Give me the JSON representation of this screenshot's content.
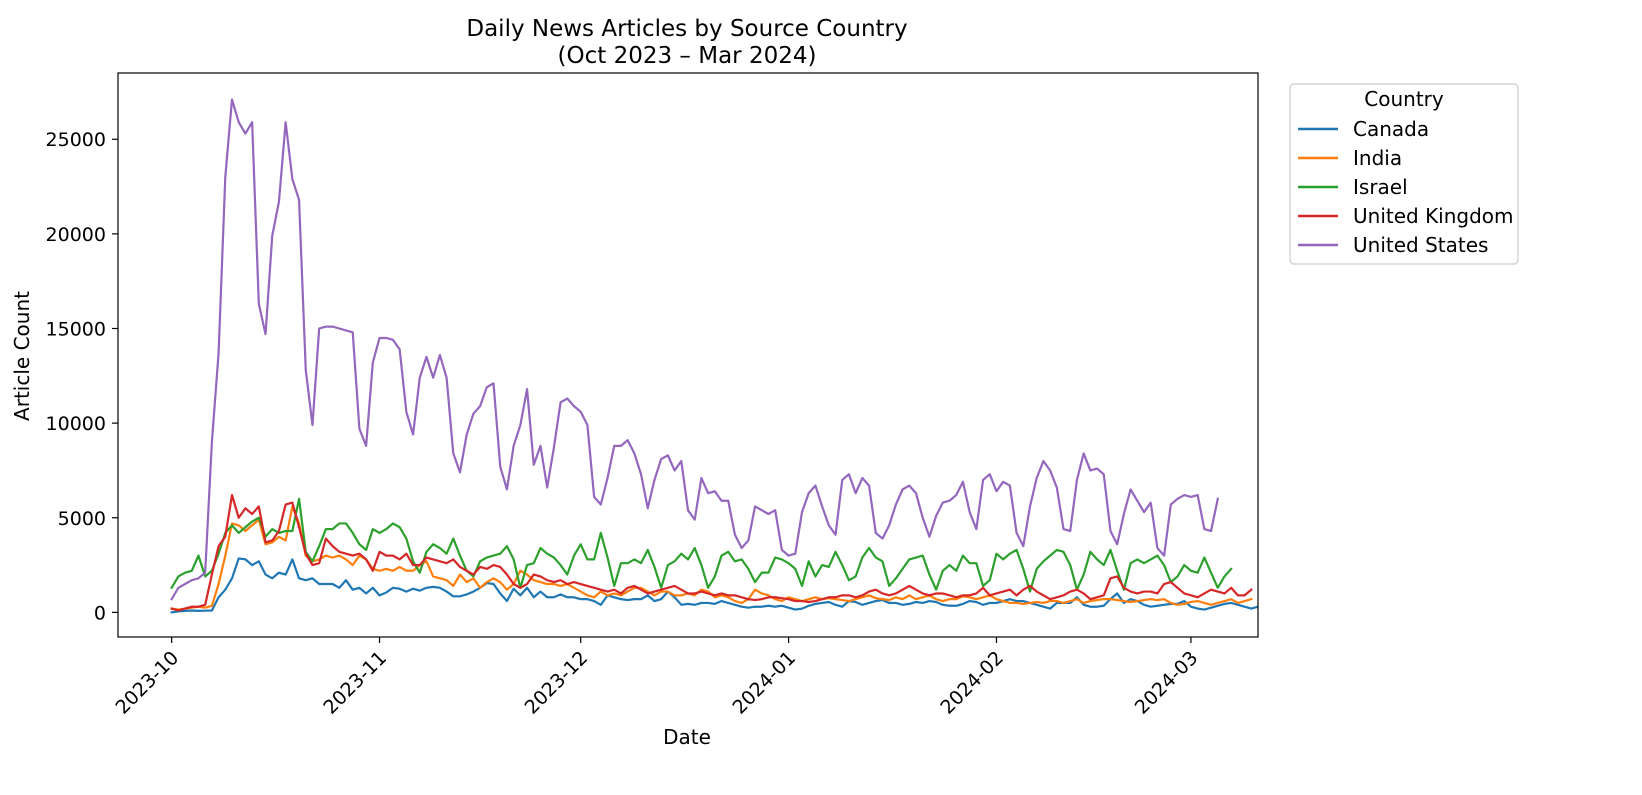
{
  "chart_data": {
    "type": "line",
    "title": "Daily News Articles by Source Country",
    "subtitle": "(Oct 2023 – Mar 2024)",
    "xlabel": "Date",
    "ylabel": "Article Count",
    "x_start": "2023-10-01",
    "x_end": "2024-03-04",
    "xlim": [
      "2023-09-23",
      "2024-03-11"
    ],
    "ylim": [
      -1300,
      28500
    ],
    "x_ticks": [
      "2023-10",
      "2023-11",
      "2023-12",
      "2024-01",
      "2024-02",
      "2024-03"
    ],
    "y_ticks": [
      0,
      5000,
      10000,
      15000,
      20000,
      25000
    ],
    "grid": false,
    "legend": {
      "title": "Country",
      "placement": "outside-top-right"
    },
    "series": [
      {
        "name": "Canada",
        "color": "#1f77b4",
        "values": [
          0,
          50,
          80,
          100,
          80,
          90,
          100,
          800,
          1200,
          1800,
          2850,
          2800,
          2500,
          2700,
          2000,
          1800,
          2100,
          2000,
          2800,
          1800,
          1700,
          1800,
          1500,
          1500,
          1500,
          1300,
          1700,
          1200,
          1300,
          1000,
          1300,
          900,
          1050,
          1300,
          1250,
          1100,
          1250,
          1150,
          1300,
          1350,
          1300,
          1100,
          850,
          850,
          950,
          1100,
          1300,
          1550,
          1500,
          1000,
          600,
          1250,
          900,
          1300,
          800,
          1100,
          800,
          800,
          950,
          800,
          800,
          700,
          700,
          600,
          400,
          900,
          800,
          700,
          650,
          700,
          700,
          900,
          600,
          700,
          1100,
          800,
          400,
          450,
          400,
          500,
          500,
          450,
          600,
          500,
          400,
          300,
          250,
          300,
          300,
          350,
          300,
          350,
          250,
          150,
          200,
          350,
          450,
          500,
          550,
          400,
          300,
          600,
          550,
          400,
          500,
          600,
          650,
          500,
          500,
          400,
          450,
          550,
          500,
          600,
          550,
          400,
          350,
          350,
          450,
          600,
          550,
          400,
          500,
          500,
          600,
          700,
          600,
          600,
          500,
          400,
          300,
          200,
          500,
          500,
          500,
          800,
          400,
          300,
          300,
          350,
          700,
          1000,
          500,
          700,
          600,
          400,
          300,
          350,
          400,
          450,
          450,
          600,
          300,
          200,
          150,
          250,
          350,
          450,
          500,
          400,
          300,
          200,
          300,
          500
        ]
      },
      {
        "name": "India",
        "color": "#ff7f0e",
        "values": [
          200,
          150,
          200,
          250,
          300,
          250,
          350,
          1500,
          3000,
          4700,
          4600,
          4300,
          4600,
          4900,
          3600,
          3700,
          4000,
          3800,
          5600,
          4700,
          3000,
          2700,
          2800,
          3000,
          2900,
          3000,
          2800,
          2500,
          3000,
          2800,
          2300,
          2200,
          2300,
          2200,
          2400,
          2200,
          2200,
          2500,
          2700,
          1900,
          1800,
          1700,
          1400,
          2000,
          1600,
          1800,
          1300,
          1600,
          1800,
          1600,
          1200,
          1500,
          2200,
          2000,
          1700,
          1600,
          1500,
          1500,
          1400,
          1500,
          1300,
          1100,
          900,
          800,
          1100,
          900,
          1000,
          900,
          1100,
          1300,
          1300,
          1100,
          900,
          1100,
          1100,
          900,
          900,
          1000,
          900,
          1200,
          1100,
          800,
          900,
          800,
          600,
          500,
          700,
          1200,
          1000,
          900,
          700,
          600,
          800,
          700,
          600,
          700,
          800,
          700,
          750,
          700,
          650,
          600,
          700,
          800,
          900,
          750,
          700,
          650,
          800,
          700,
          900,
          700,
          800,
          900,
          700,
          600,
          700,
          700,
          850,
          800,
          700,
          800,
          900,
          700,
          600,
          500,
          500,
          450,
          500,
          550,
          500,
          600,
          600,
          500,
          600,
          700,
          500,
          600,
          650,
          700,
          700,
          650,
          600,
          550,
          600,
          650,
          700,
          650,
          700,
          500,
          400,
          450,
          550,
          600,
          500,
          400,
          500,
          600,
          700,
          500,
          600,
          700
        ]
      },
      {
        "name": "Israel",
        "color": "#2ca02c",
        "values": [
          1300,
          1900,
          2100,
          2200,
          3000,
          1900,
          2200,
          3100,
          4200,
          4600,
          4200,
          4500,
          4800,
          5000,
          4000,
          4400,
          4200,
          4300,
          4300,
          6000,
          3200,
          2700,
          3500,
          4400,
          4400,
          4700,
          4700,
          4200,
          3600,
          3300,
          4400,
          4200,
          4400,
          4700,
          4500,
          3900,
          2700,
          2100,
          3200,
          3600,
          3400,
          3100,
          3900,
          3000,
          2200,
          1900,
          2700,
          2900,
          3000,
          3100,
          3500,
          2800,
          1300,
          2500,
          2600,
          3400,
          3100,
          2900,
          2500,
          2000,
          3000,
          3600,
          2800,
          2800,
          4200,
          2900,
          1400,
          2600,
          2600,
          2800,
          2600,
          3300,
          2400,
          1300,
          2500,
          2700,
          3100,
          2800,
          3400,
          2500,
          1300,
          1900,
          3000,
          3200,
          2700,
          2800,
          2300,
          1600,
          2100,
          2100,
          2900,
          2800,
          2600,
          2300,
          1400,
          2700,
          1900,
          2500,
          2400,
          3200,
          2500,
          1700,
          1900,
          2900,
          3400,
          2900,
          2700,
          1400,
          1800,
          2300,
          2800,
          2900,
          3000,
          2000,
          1200,
          2200,
          2500,
          2200,
          3000,
          2600,
          2600,
          1400,
          1700,
          3100,
          2800,
          3100,
          3300,
          2300,
          1100,
          2300,
          2700,
          3000,
          3300,
          3200,
          2500,
          1200,
          2000,
          3200,
          2800,
          2500,
          3300,
          2200,
          1200,
          2600,
          2800,
          2600,
          2800,
          3000,
          2500,
          1600,
          1900,
          2500,
          2200,
          2100,
          2900,
          2100,
          1300,
          1900,
          2300
        ]
      },
      {
        "name": "United Kingdom",
        "color": "#d62728",
        "values": [
          200,
          100,
          200,
          300,
          300,
          400,
          2000,
          3500,
          4000,
          6200,
          5000,
          5500,
          5200,
          5600,
          3700,
          3800,
          4300,
          5700,
          5800,
          4500,
          3100,
          2500,
          2600,
          3900,
          3500,
          3200,
          3100,
          3000,
          3100,
          2800,
          2200,
          3200,
          3000,
          3000,
          2800,
          3100,
          2500,
          2500,
          2900,
          2800,
          2700,
          2600,
          2800,
          2400,
          2200,
          2000,
          2400,
          2300,
          2500,
          2400,
          2000,
          1500,
          1300,
          1500,
          2000,
          1900,
          1700,
          1600,
          1700,
          1500,
          1600,
          1500,
          1400,
          1300,
          1200,
          1100,
          1200,
          1000,
          1300,
          1400,
          1200,
          1000,
          1100,
          1200,
          1300,
          1400,
          1200,
          1000,
          1000,
          1100,
          1000,
          900,
          1000,
          900,
          900,
          800,
          700,
          650,
          700,
          800,
          800,
          750,
          700,
          600,
          600,
          550,
          600,
          700,
          800,
          800,
          900,
          900,
          800,
          900,
          1100,
          1200,
          1000,
          900,
          1000,
          1200,
          1400,
          1200,
          1000,
          900,
          1000,
          1000,
          900,
          800,
          900,
          900,
          1000,
          1300,
          900,
          1000,
          1100,
          1200,
          900,
          1200,
          1400,
          1100,
          900,
          700,
          800,
          900,
          1100,
          1200,
          1000,
          700,
          800,
          900,
          1800,
          1900,
          1300,
          1100,
          1000,
          1100,
          1100,
          1000,
          1500,
          1600,
          1300,
          1000,
          900,
          800,
          1000,
          1200,
          1100,
          1000,
          1300,
          900,
          900,
          1200
        ]
      },
      {
        "name": "United States",
        "color": "#9467bd",
        "values": [
          700,
          1300,
          1500,
          1700,
          1800,
          2100,
          9000,
          13700,
          23000,
          27100,
          25900,
          25300,
          25900,
          16300,
          14700,
          19900,
          21700,
          25900,
          22900,
          21800,
          12800,
          9900,
          15000,
          15100,
          15100,
          15000,
          14900,
          14800,
          9700,
          8800,
          13200,
          14500,
          14500,
          14400,
          13900,
          10600,
          9400,
          12400,
          13500,
          12400,
          13600,
          12400,
          8400,
          7400,
          9400,
          10500,
          10900,
          11900,
          12100,
          7700,
          6500,
          8800,
          9900,
          11800,
          7800,
          8800,
          6600,
          8700,
          11100,
          11300,
          10900,
          10600,
          9900,
          6100,
          5700,
          7100,
          8800,
          8800,
          9100,
          8400,
          7300,
          5500,
          7000,
          8100,
          8300,
          7500,
          8000,
          5400,
          4900,
          7100,
          6300,
          6400,
          5900,
          5900,
          4100,
          3400,
          3800,
          5600,
          5400,
          5200,
          5400,
          3300,
          3000,
          3100,
          5300,
          6300,
          6700,
          5600,
          4600,
          4100,
          7000,
          7300,
          6300,
          7100,
          6700,
          4200,
          3900,
          4600,
          5700,
          6500,
          6700,
          6300,
          5000,
          4000,
          5100,
          5800,
          5900,
          6200,
          6900,
          5300,
          4400,
          7000,
          7300,
          6400,
          6900,
          6700,
          4200,
          3500,
          5600,
          7100,
          8000,
          7500,
          6600,
          4400,
          4300,
          7000,
          8400,
          7500,
          7600,
          7300,
          4300,
          3600,
          5200,
          6500,
          5900,
          5300,
          5800,
          3400,
          3000,
          5700,
          6000,
          6200,
          6100,
          6200,
          4400,
          4300,
          6000
        ]
      }
    ]
  }
}
